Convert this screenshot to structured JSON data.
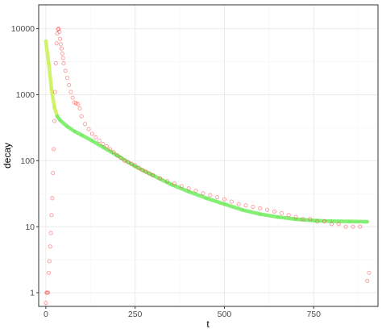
{
  "chart_data": {
    "type": "scatter",
    "xlabel": "t",
    "ylabel": "decay",
    "y_scale": "log10",
    "xlim": [
      -20,
      930
    ],
    "ylim": [
      0.62,
      23000
    ],
    "grid": true,
    "x_ticks": [
      {
        "value": 0,
        "label": "0"
      },
      {
        "value": 250,
        "label": "250"
      },
      {
        "value": 500,
        "label": "500"
      },
      {
        "value": 750,
        "label": "750"
      }
    ],
    "y_ticks": [
      {
        "value": 1,
        "label": "1"
      },
      {
        "value": 10,
        "label": "10"
      },
      {
        "value": 100,
        "label": "100"
      },
      {
        "value": 1000,
        "label": "1000"
      },
      {
        "value": 10000,
        "label": "10000"
      }
    ],
    "colors": {
      "points": "#ff3333",
      "points_dark": "#d90000",
      "fit_line": "#77ee66",
      "fit_line_early": "#ccf25a",
      "grid_major": "#ebebeb",
      "grid_minor": "#f5f5f5",
      "panel_border": "#333333",
      "tick_label": "#4d4d4d"
    },
    "series": [
      {
        "type": "scatter",
        "color": "#ff3333",
        "points": [
          [
            0,
            0.7
          ],
          [
            2,
            1
          ],
          [
            4,
            1
          ],
          [
            6,
            1
          ],
          [
            8,
            2
          ],
          [
            10,
            3
          ],
          [
            12,
            5
          ],
          [
            14,
            8
          ],
          [
            16,
            15
          ],
          [
            18,
            27
          ],
          [
            20,
            65
          ],
          [
            22,
            150
          ],
          [
            24,
            400
          ],
          [
            26,
            1100
          ],
          [
            28,
            3000
          ],
          [
            30,
            6000
          ],
          [
            32,
            8500
          ],
          [
            34,
            9800
          ],
          [
            36,
            10000
          ],
          [
            38,
            9000
          ],
          [
            40,
            7000
          ],
          [
            42,
            5800
          ],
          [
            44,
            5000
          ],
          [
            46,
            4200
          ],
          [
            48,
            3600
          ],
          [
            50,
            3000
          ],
          [
            55,
            2300
          ],
          [
            60,
            1800
          ],
          [
            65,
            1400
          ],
          [
            70,
            1100
          ],
          [
            75,
            900
          ],
          [
            80,
            760
          ],
          [
            85,
            740
          ],
          [
            90,
            720
          ],
          [
            95,
            620
          ],
          [
            100,
            470
          ],
          [
            110,
            360
          ],
          [
            120,
            300
          ],
          [
            130,
            255
          ],
          [
            140,
            225
          ],
          [
            150,
            200
          ],
          [
            160,
            180
          ],
          [
            170,
            165
          ],
          [
            180,
            150
          ],
          [
            190,
            135
          ],
          [
            200,
            120
          ],
          [
            210,
            110
          ],
          [
            220,
            100
          ],
          [
            230,
            95
          ],
          [
            240,
            90
          ],
          [
            250,
            85
          ],
          [
            260,
            78
          ],
          [
            270,
            72
          ],
          [
            280,
            68
          ],
          [
            290,
            64
          ],
          [
            300,
            60
          ],
          [
            320,
            54
          ],
          [
            340,
            49
          ],
          [
            360,
            45
          ],
          [
            380,
            41
          ],
          [
            400,
            38
          ],
          [
            420,
            35
          ],
          [
            440,
            32
          ],
          [
            460,
            30
          ],
          [
            480,
            28
          ],
          [
            500,
            26
          ],
          [
            520,
            24
          ],
          [
            540,
            22
          ],
          [
            560,
            21
          ],
          [
            580,
            20
          ],
          [
            600,
            19
          ],
          [
            620,
            18
          ],
          [
            640,
            17
          ],
          [
            660,
            16
          ],
          [
            680,
            15
          ],
          [
            700,
            14
          ],
          [
            720,
            13
          ],
          [
            740,
            13
          ],
          [
            760,
            12
          ],
          [
            780,
            12
          ],
          [
            800,
            11
          ],
          [
            820,
            11
          ],
          [
            840,
            10
          ],
          [
            860,
            10
          ],
          [
            880,
            10
          ],
          [
            900,
            1.5
          ],
          [
            905,
            2
          ]
        ]
      },
      {
        "type": "line",
        "color": "#77ee66",
        "points": [
          [
            0,
            6500
          ],
          [
            8,
            3000
          ],
          [
            16,
            1200
          ],
          [
            24,
            650
          ],
          [
            32,
            470
          ],
          [
            40,
            410
          ],
          [
            60,
            330
          ],
          [
            80,
            280
          ],
          [
            100,
            245
          ],
          [
            130,
            200
          ],
          [
            160,
            160
          ],
          [
            200,
            120
          ],
          [
            250,
            82
          ],
          [
            300,
            60
          ],
          [
            350,
            44
          ],
          [
            400,
            34
          ],
          [
            450,
            27
          ],
          [
            500,
            22
          ],
          [
            550,
            18
          ],
          [
            600,
            15.5
          ],
          [
            650,
            14
          ],
          [
            700,
            13
          ],
          [
            750,
            12.4
          ],
          [
            800,
            12.1
          ],
          [
            850,
            12
          ],
          [
            900,
            11.9
          ]
        ]
      }
    ]
  }
}
